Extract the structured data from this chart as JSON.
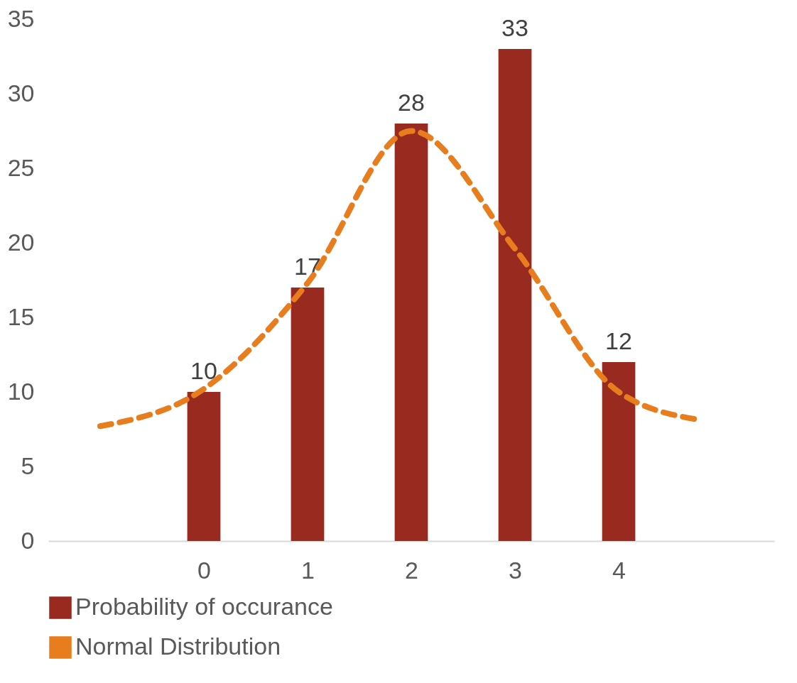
{
  "chart_data": {
    "type": "bar",
    "x": [
      0,
      1,
      2,
      3,
      4
    ],
    "xlim": [
      -1.5,
      5.5
    ],
    "xticks": [
      0,
      1,
      2,
      3,
      4
    ],
    "ylim": [
      0,
      35
    ],
    "yticks": [
      0,
      5,
      10,
      15,
      20,
      25,
      30,
      35
    ],
    "grid": false,
    "legend": "bottom",
    "series": [
      {
        "name": "Probability of occurance",
        "color": "#982a20",
        "values": [
          10,
          17,
          28,
          33,
          12
        ],
        "value_labels": [
          "10",
          "17",
          "28",
          "33",
          "12"
        ]
      },
      {
        "name": "Normal Distribution",
        "type": "line",
        "color": "#e87d1e",
        "line_style": "dashed",
        "marker": "none",
        "x": [
          -1,
          0,
          1,
          2,
          3,
          4,
          4.8
        ],
        "values": [
          7.7,
          10.2,
          17.3,
          27.5,
          19.6,
          10,
          8.1
        ]
      }
    ]
  }
}
